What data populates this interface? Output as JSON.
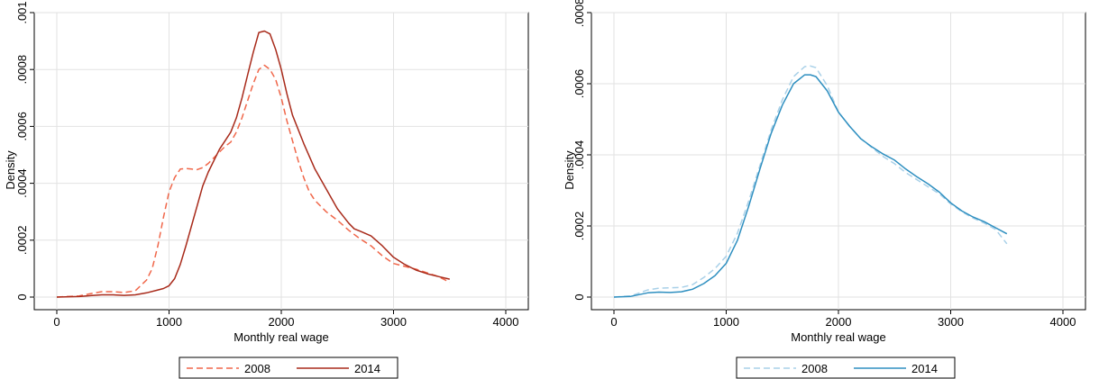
{
  "chart_data": [
    {
      "type": "line",
      "title": "",
      "xlabel": "Monthly real wage",
      "ylabel": "Density",
      "xlim": [
        0,
        4000
      ],
      "ylim": [
        0,
        0.001
      ],
      "xticks": [
        0,
        1000,
        2000,
        3000,
        4000
      ],
      "xtick_labels": [
        "0",
        "1000",
        "2000",
        "3000",
        "4000"
      ],
      "yticks": [
        0,
        0.0002,
        0.0004,
        0.0006,
        0.0008,
        0.001
      ],
      "ytick_labels": [
        "0",
        ".0002",
        ".0004",
        ".0006",
        ".0008",
        ".001"
      ],
      "grid": true,
      "legend_position": "bottom",
      "series": [
        {
          "name": "2008",
          "color": "#f0674a",
          "dash": "dashed",
          "x": [
            0,
            200,
            300,
            400,
            500,
            600,
            700,
            800,
            850,
            900,
            950,
            1000,
            1050,
            1100,
            1150,
            1200,
            1250,
            1300,
            1350,
            1400,
            1450,
            1500,
            1550,
            1600,
            1650,
            1700,
            1750,
            1800,
            1850,
            1900,
            1950,
            2000,
            2050,
            2100,
            2150,
            2200,
            2250,
            2300,
            2400,
            2500,
            2600,
            2700,
            2800,
            2900,
            3000,
            3100,
            3200,
            3300,
            3400,
            3500
          ],
          "y": [
            0,
            4e-06,
            1.2e-05,
            1.9e-05,
            1.9e-05,
            1.6e-05,
            2.2e-05,
            6e-05,
            0.0001,
            0.00018,
            0.00028,
            0.00037,
            0.00042,
            0.00045,
            0.000452,
            0.00045,
            0.000448,
            0.000455,
            0.00047,
            0.00049,
            0.00051,
            0.00053,
            0.000545,
            0.00058,
            0.00063,
            0.00069,
            0.00075,
            0.0008,
            0.000815,
            0.0008,
            0.000765,
            0.0007,
            0.00062,
            0.00055,
            0.00048,
            0.00042,
            0.00037,
            0.00034,
            0.0003,
            0.00027,
            0.000235,
            0.000205,
            0.00018,
            0.000145,
            0.000118,
            0.000108,
            9.8e-05,
            8.5e-05,
            7.2e-05,
            5.2e-05
          ]
        },
        {
          "name": "2014",
          "color": "#a82a1a",
          "dash": "solid",
          "x": [
            0,
            200,
            300,
            400,
            500,
            600,
            700,
            800,
            900,
            950,
            1000,
            1050,
            1100,
            1150,
            1200,
            1250,
            1300,
            1350,
            1400,
            1450,
            1500,
            1550,
            1600,
            1650,
            1700,
            1750,
            1800,
            1850,
            1900,
            1950,
            2000,
            2050,
            2100,
            2200,
            2300,
            2400,
            2500,
            2600,
            2650,
            2700,
            2800,
            2900,
            3000,
            3100,
            3200,
            3300,
            3400,
            3500
          ],
          "y": [
            0,
            2e-06,
            5e-06,
            8e-06,
            8e-06,
            6e-06,
            8e-06,
            1.5e-05,
            2.5e-05,
            3e-05,
            4e-05,
            6.5e-05,
            0.000115,
            0.00018,
            0.00025,
            0.00032,
            0.00039,
            0.00044,
            0.00048,
            0.00052,
            0.00055,
            0.00058,
            0.00063,
            0.0007,
            0.00078,
            0.00086,
            0.00093,
            0.000935,
            0.000925,
            0.00087,
            0.0008,
            0.000715,
            0.00064,
            0.00054,
            0.00045,
            0.00038,
            0.00031,
            0.00026,
            0.00024,
            0.000232,
            0.000215,
            0.00018,
            0.00014,
            0.000115,
            9.5e-05,
            8.2e-05,
            7.2e-05,
            6.3e-05
          ]
        }
      ]
    },
    {
      "type": "line",
      "title": "",
      "xlabel": "Monthly real wage",
      "ylabel": "Density",
      "xlim": [
        0,
        4000
      ],
      "ylim": [
        0,
        0.0008
      ],
      "xticks": [
        0,
        1000,
        2000,
        3000,
        4000
      ],
      "xtick_labels": [
        "0",
        "1000",
        "2000",
        "3000",
        "4000"
      ],
      "yticks": [
        0,
        0.0002,
        0.0004,
        0.0006,
        0.0008
      ],
      "ytick_labels": [
        "0",
        ".0002",
        ".0004",
        ".0006",
        ".0008"
      ],
      "grid": true,
      "legend_position": "bottom",
      "series": [
        {
          "name": "2008",
          "color": "#a8d0e8",
          "dash": "dashed",
          "x": [
            0,
            150,
            300,
            400,
            500,
            600,
            700,
            800,
            900,
            1000,
            1100,
            1200,
            1300,
            1400,
            1500,
            1600,
            1700,
            1750,
            1800,
            1900,
            2000,
            2100,
            2200,
            2300,
            2400,
            2500,
            2600,
            2700,
            2800,
            2900,
            3000,
            3100,
            3200,
            3300,
            3400,
            3500
          ],
          "y": [
            0,
            3e-06,
            2e-05,
            2.5e-05,
            2.6e-05,
            2.7e-05,
            3.5e-05,
            5.5e-05,
            8e-05,
            0.000115,
            0.00018,
            0.00027,
            0.00037,
            0.00047,
            0.000555,
            0.00062,
            0.000648,
            0.00065,
            0.000645,
            0.000595,
            0.00052,
            0.00048,
            0.000445,
            0.00042,
            0.000395,
            0.000375,
            0.00035,
            0.00033,
            0.00031,
            0.00029,
            0.000262,
            0.00024,
            0.000222,
            0.000208,
            0.00019,
            0.00015
          ]
        },
        {
          "name": "2014",
          "color": "#2e8fc0",
          "dash": "solid",
          "x": [
            0,
            150,
            300,
            400,
            500,
            600,
            700,
            800,
            900,
            1000,
            1100,
            1200,
            1300,
            1400,
            1500,
            1600,
            1700,
            1750,
            1800,
            1900,
            2000,
            2100,
            2200,
            2300,
            2400,
            2500,
            2600,
            2700,
            2800,
            2900,
            3000,
            3100,
            3200,
            3300,
            3400,
            3500
          ],
          "y": [
            0,
            2e-06,
            1.2e-05,
            1.4e-05,
            1.3e-05,
            1.5e-05,
            2.2e-05,
            3.8e-05,
            6e-05,
            9.5e-05,
            0.00016,
            0.000255,
            0.00036,
            0.00046,
            0.00054,
            0.0006,
            0.000625,
            0.000625,
            0.00062,
            0.00058,
            0.00052,
            0.00048,
            0.000445,
            0.000422,
            0.000402,
            0.000385,
            0.00036,
            0.000338,
            0.000318,
            0.000295,
            0.000265,
            0.000242,
            0.000225,
            0.000212,
            0.000195,
            0.000178
          ]
        }
      ]
    }
  ]
}
